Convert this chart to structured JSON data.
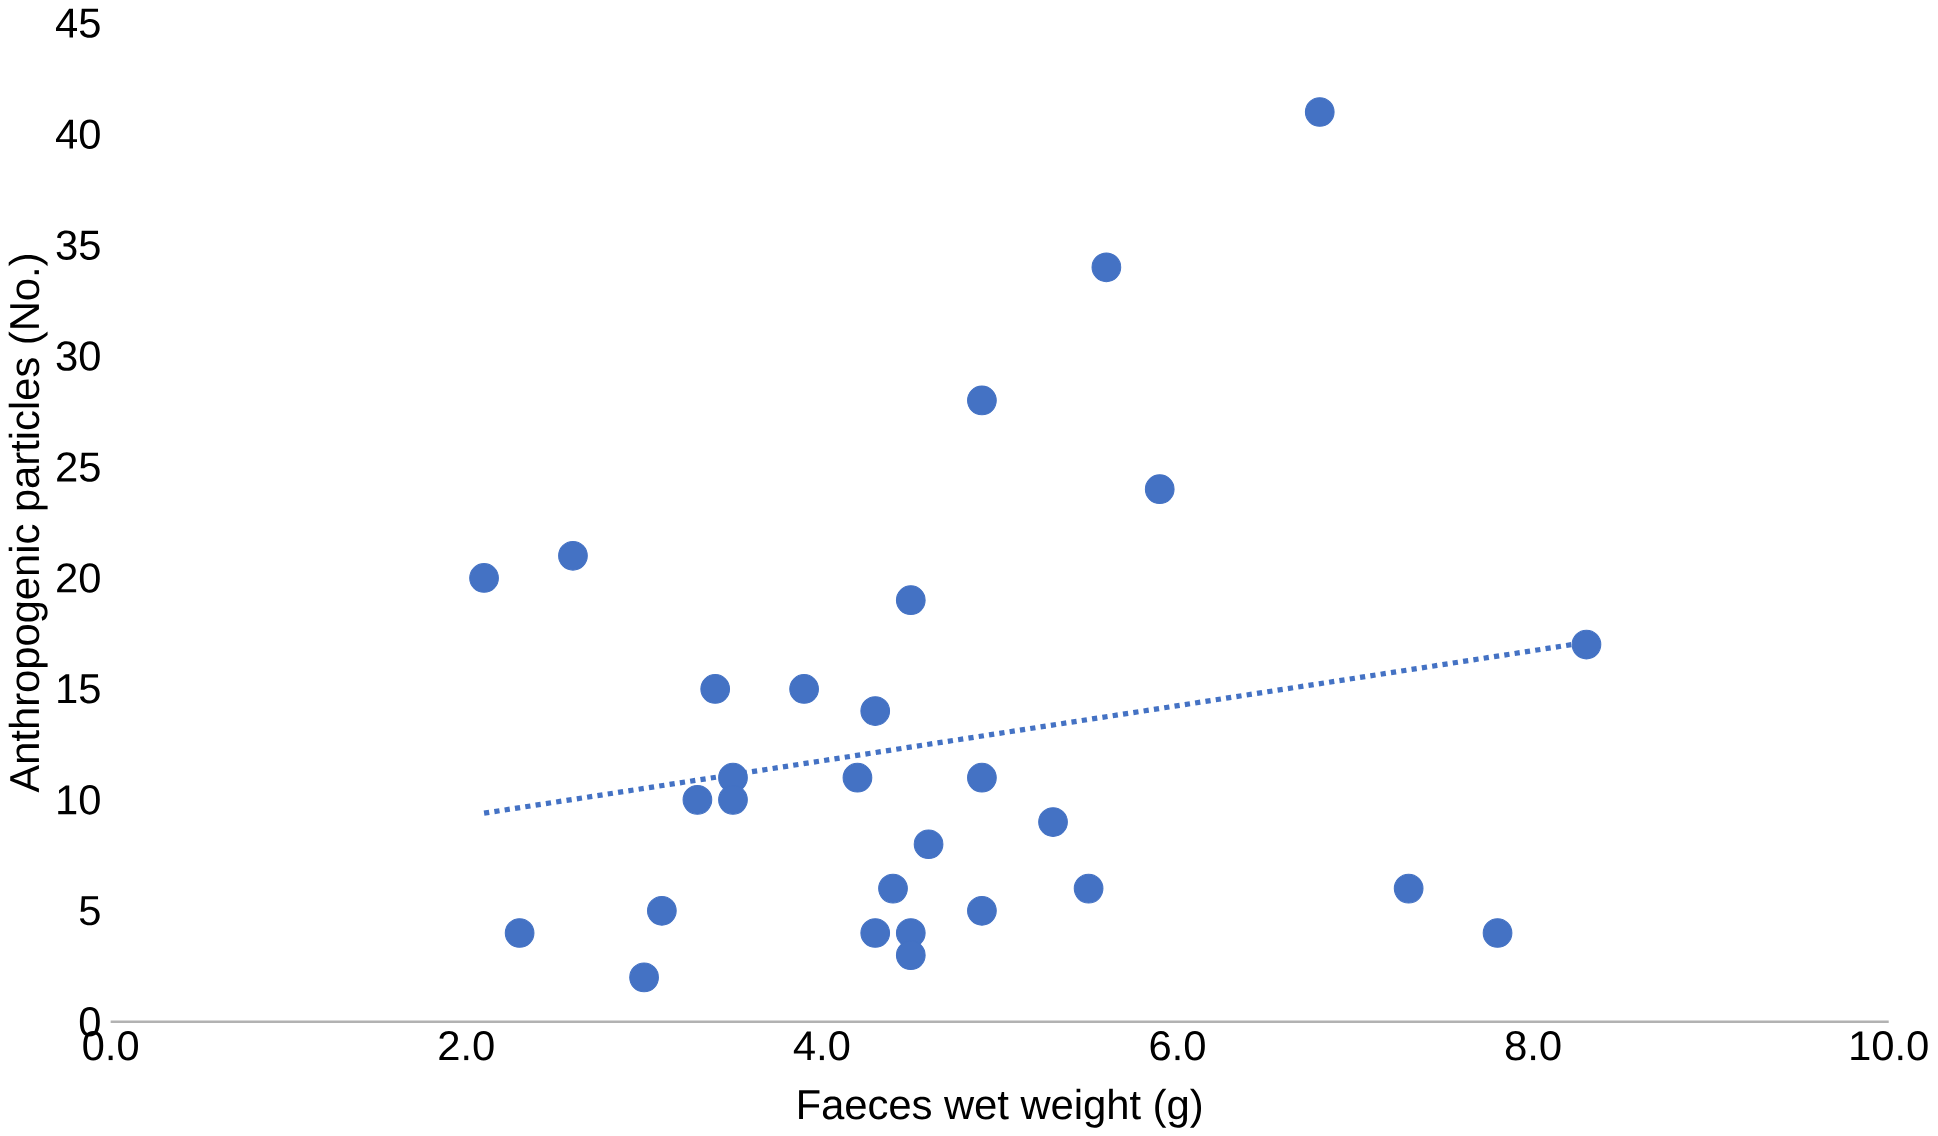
{
  "chart_data": {
    "type": "scatter",
    "xlabel": "Faeces wet weight (g)",
    "ylabel": "Anthropogenic particles (No.)",
    "xlim": [
      0,
      10
    ],
    "ylim": [
      0,
      45
    ],
    "xticks": [
      {
        "value": 0,
        "label": "0.0"
      },
      {
        "value": 2,
        "label": "2.0"
      },
      {
        "value": 4,
        "label": "4.0"
      },
      {
        "value": 6,
        "label": "6.0"
      },
      {
        "value": 8,
        "label": "8.0"
      },
      {
        "value": 10,
        "label": "10.0"
      }
    ],
    "yticks": [
      0,
      5,
      10,
      15,
      20,
      25,
      30,
      35,
      40,
      45
    ],
    "grid": false,
    "series": [
      {
        "marker": "circle",
        "color": "#4472c4",
        "x": [
          2.1,
          2.3,
          2.6,
          3.0,
          3.1,
          3.3,
          3.4,
          3.5,
          3.5,
          3.9,
          4.2,
          4.3,
          4.3,
          4.4,
          4.5,
          4.5,
          4.5,
          4.6,
          4.9,
          4.9,
          4.9,
          5.3,
          5.5,
          5.6,
          5.9,
          6.8,
          7.3,
          7.8,
          8.3
        ],
        "values": [
          20,
          4,
          21,
          2,
          5,
          10,
          15,
          11,
          10,
          15,
          11,
          14,
          4,
          6,
          19,
          4,
          3,
          8,
          28,
          11,
          5,
          9,
          6,
          34,
          24,
          41,
          6,
          4,
          17
        ]
      },
      {
        "type": "line",
        "marker": "none",
        "line_style": "dotted",
        "color": "#4472c4",
        "x": [
          2.1,
          8.3
        ],
        "values": [
          9.4,
          17.1
        ]
      }
    ]
  }
}
